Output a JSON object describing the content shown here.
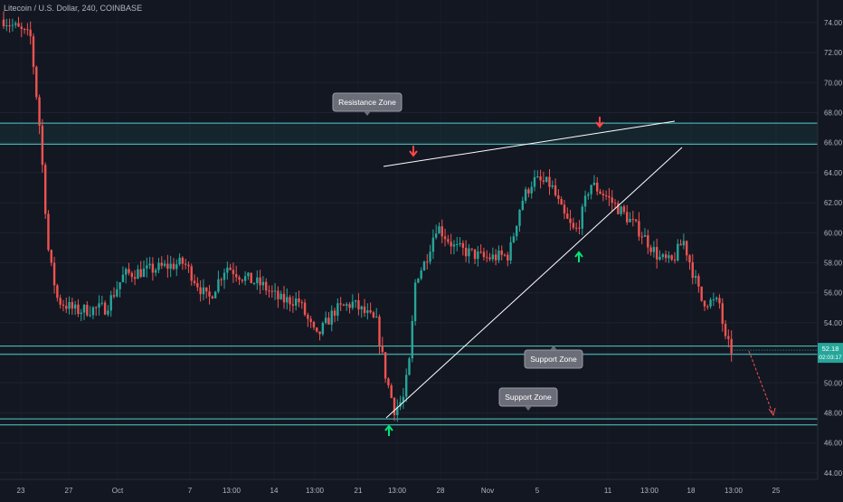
{
  "header": {
    "title": "Litecoin / U.S. Dollar, 240, COINBASE"
  },
  "price_axis": {
    "ticks": [
      "74.00",
      "72.00",
      "70.00",
      "68.00",
      "66.00",
      "64.00",
      "62.00",
      "60.00",
      "58.00",
      "56.00",
      "54.00",
      "52.00",
      "50.00",
      "48.00",
      "46.00",
      "44.00"
    ],
    "last_price_label": "52.18",
    "countdown_label": "02:03:17",
    "last_price_color": "#26a69a"
  },
  "time_axis": {
    "labels": [
      "23",
      "27",
      "Oct",
      "7",
      "13:00",
      "14",
      "13:00",
      "21",
      "13:00",
      "28",
      "Nov",
      "5",
      "11",
      "13:00",
      "18",
      "13:00",
      "25"
    ]
  },
  "annotations": {
    "resistance_label": "Resistance Zone",
    "support_label_upper": "Support Zone",
    "support_label_lower": "Support Zone"
  },
  "colors": {
    "background": "#131722",
    "bull": "#26a69a",
    "bear": "#ef5350",
    "zone_line": "#4dd0c8",
    "trendline": "#ffffff",
    "up_arrow": "#00e676",
    "down_arrow": "#ff4444"
  },
  "chart_data": {
    "type": "candlestick",
    "title": "Litecoin / U.S. Dollar, 240, COINBASE",
    "ylim": [
      43,
      75.5
    ],
    "resistance_zone": [
      65.9,
      67.3
    ],
    "support_zone_upper": [
      51.9,
      52.45
    ],
    "support_zone_lower": [
      47.2,
      47.6
    ],
    "last_price": 52.18,
    "close_path": [
      [
        0,
        74.2
      ],
      [
        0.045,
        73.0
      ],
      [
        0.06,
        67.0
      ],
      [
        0.075,
        58.5
      ],
      [
        0.09,
        55.5
      ],
      [
        0.12,
        54.8
      ],
      [
        0.17,
        55.0
      ],
      [
        0.2,
        57.2
      ],
      [
        0.24,
        57.5
      ],
      [
        0.3,
        58.0
      ],
      [
        0.34,
        55.5
      ],
      [
        0.37,
        57.8
      ],
      [
        0.4,
        57.0
      ],
      [
        0.43,
        56.5
      ],
      [
        0.46,
        55.5
      ],
      [
        0.49,
        55.5
      ],
      [
        0.52,
        53.0
      ],
      [
        0.55,
        54.8
      ],
      [
        0.58,
        55.3
      ],
      [
        0.605,
        54.5
      ],
      [
        0.62,
        54.0
      ],
      [
        0.635,
        50.5
      ],
      [
        0.65,
        48.2
      ],
      [
        0.665,
        49.0
      ],
      [
        0.675,
        51.5
      ],
      [
        0.685,
        57.0
      ],
      [
        0.7,
        58.0
      ],
      [
        0.72,
        60.5
      ],
      [
        0.75,
        59.0
      ],
      [
        0.8,
        58.3
      ],
      [
        0.84,
        58.5
      ],
      [
        0.86,
        62.0
      ],
      [
        0.88,
        63.5
      ],
      [
        0.91,
        63.2
      ],
      [
        0.93,
        61.2
      ],
      [
        0.95,
        60.0
      ],
      [
        0.96,
        61.0
      ],
      [
        0.975,
        63.3
      ],
      [
        1.0,
        62.5
      ],
      [
        1.03,
        61.3
      ],
      [
        1.06,
        60.0
      ],
      [
        1.09,
        58.3
      ],
      [
        1.11,
        58.0
      ],
      [
        1.13,
        59.5
      ],
      [
        1.16,
        55.5
      ],
      [
        1.19,
        55.3
      ],
      [
        1.2,
        52.8
      ],
      [
        1.21,
        52.2
      ]
    ]
  }
}
